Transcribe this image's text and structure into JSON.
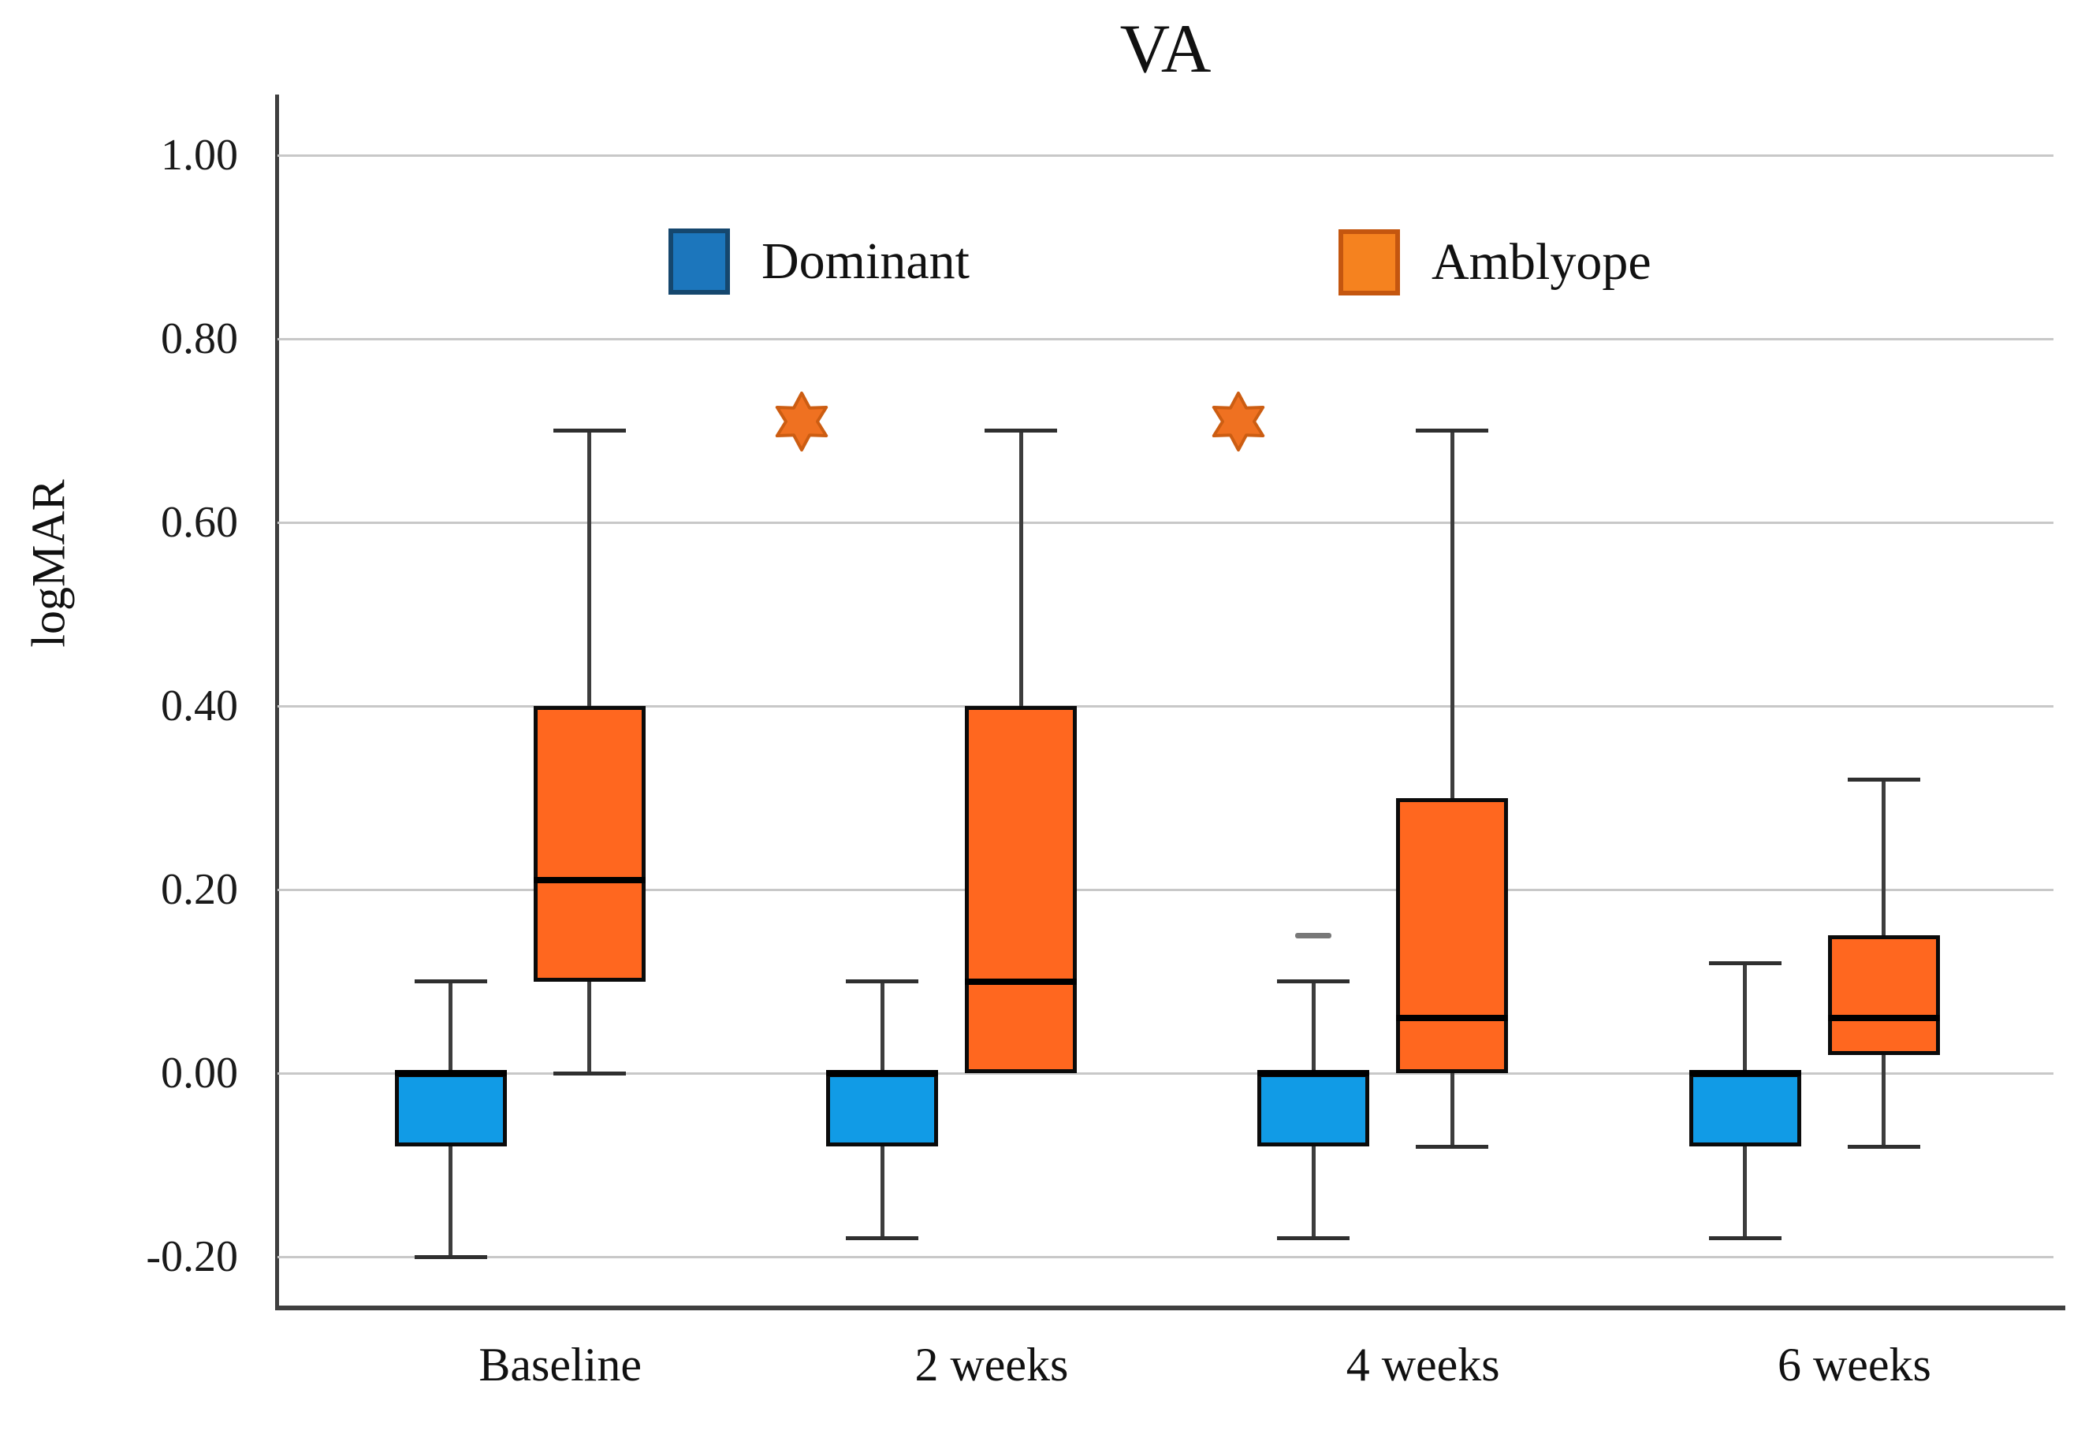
{
  "title": "VA",
  "ylabel": "logMAR",
  "legend": {
    "items": [
      {
        "label": "Dominant",
        "fill": "#1C76BC",
        "border": "#15476E"
      },
      {
        "label": "Amblyope",
        "fill": "#F5821F",
        "border": "#C4560F"
      }
    ]
  },
  "colors": {
    "dominant_box_fill": "#119BE6",
    "amblyope_box_fill": "#FF671F",
    "box_border": "#0B0B0B",
    "median": "#000000",
    "whisker": "#3D3D3D",
    "gridline": "#C8C8C8",
    "axis": "#3F3F3F",
    "star_fill": "#EF7121",
    "star_edge": "#CC5D12",
    "outlier": "#787878"
  },
  "chart_data": {
    "type": "boxplot",
    "title": "VA",
    "ylabel": "logMAR",
    "categories": [
      "Baseline",
      "2 weeks",
      "4 weeks",
      "6 weeks"
    ],
    "y_axis": {
      "ticks": [
        1.0,
        0.8,
        0.6,
        0.4,
        0.2,
        0.0,
        -0.2
      ],
      "tick_labels": [
        "1.00",
        "0.80",
        "0.60",
        "0.40",
        "0.20",
        "0.00",
        "-0.20"
      ],
      "range_shown": [
        -0.26,
        1.04
      ],
      "gridlines": true
    },
    "series": [
      {
        "name": "Dominant",
        "fill": "#119BE6",
        "border": "#0B0B0B",
        "boxes": [
          {
            "category": "Baseline",
            "min": -0.2,
            "q1": -0.08,
            "median": 0.0,
            "q3": 0.0,
            "max": 0.1
          },
          {
            "category": "2 weeks",
            "min": -0.18,
            "q1": -0.08,
            "median": 0.0,
            "q3": 0.0,
            "max": 0.1
          },
          {
            "category": "4 weeks",
            "min": -0.18,
            "q1": -0.08,
            "median": 0.0,
            "q3": 0.0,
            "max": 0.1
          },
          {
            "category": "6 weeks",
            "min": -0.18,
            "q1": -0.08,
            "median": 0.0,
            "q3": 0.0,
            "max": 0.12
          }
        ]
      },
      {
        "name": "Amblyope",
        "fill": "#FF671F",
        "border": "#0B0B0B",
        "boxes": [
          {
            "category": "Baseline",
            "min": 0.0,
            "q1": 0.1,
            "median": 0.21,
            "q3": 0.4,
            "max": 0.7
          },
          {
            "category": "2 weeks",
            "min": 0.0,
            "q1": 0.0,
            "median": 0.1,
            "q3": 0.4,
            "max": 0.7
          },
          {
            "category": "4 weeks",
            "min": -0.08,
            "q1": 0.0,
            "median": 0.06,
            "q3": 0.3,
            "max": 0.7
          },
          {
            "category": "6 weeks",
            "min": -0.08,
            "q1": 0.02,
            "median": 0.06,
            "q3": 0.15,
            "max": 0.32
          }
        ]
      }
    ],
    "outliers": [
      {
        "series": "Dominant",
        "category": "4 weeks",
        "value": 0.15
      }
    ],
    "annotations": [
      {
        "type": "six-pointed-star",
        "value": 0.71,
        "x_frac": 0.295,
        "between": "Baseline and 2 weeks"
      },
      {
        "type": "six-pointed-star",
        "value": 0.71,
        "x_frac": 0.541,
        "between": "2 weeks and 4 weeks"
      }
    ],
    "legend_position": "top-center"
  }
}
